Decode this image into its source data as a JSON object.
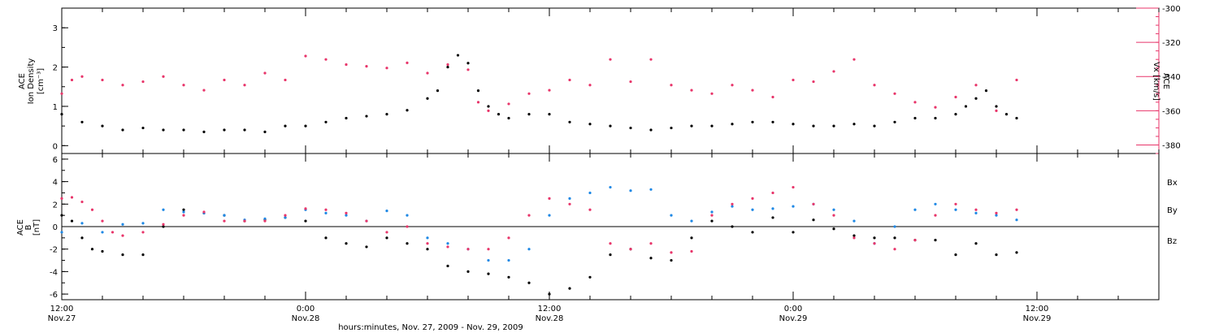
{
  "figure": {
    "xlabel": "hours:minutes, Nov. 27, 2009 - Nov. 29, 2009",
    "x_ticks": [
      {
        "time": "12:00",
        "date": "Nov.27",
        "hours": 0
      },
      {
        "time": "0:00",
        "date": "Nov.28",
        "hours": 12
      },
      {
        "time": "12:00",
        "date": "Nov.28",
        "hours": 24
      },
      {
        "time": "0:00",
        "date": "Nov.29",
        "hours": 36
      },
      {
        "time": "12:00",
        "date": "Nov.29",
        "hours": 48
      }
    ],
    "x_range_hours": [
      0,
      54
    ],
    "minor_tick_hours": 2
  },
  "top_panel": {
    "left_axis": {
      "line1": "ACE",
      "line2": "Ion Density",
      "unit": "[cm⁻³]",
      "range": [
        -0.2,
        3.5
      ],
      "ticks": [
        "0",
        "1",
        "2",
        "3"
      ]
    },
    "right_axis": {
      "line1": "ACE",
      "line2": "Vx [km/s]",
      "range": [
        -385,
        -300
      ],
      "ticks": [
        "-300",
        "-320",
        "-340",
        "-360",
        "-380"
      ],
      "color": "#e8356a"
    }
  },
  "bottom_panel": {
    "left_axis": {
      "line1": "ACE",
      "line2": "B",
      "unit": "[nT]",
      "range": [
        -6.5,
        6.5
      ],
      "ticks": [
        "6",
        "4",
        "2",
        "0",
        "-2",
        "-4",
        "-6"
      ]
    },
    "legend": [
      {
        "label": "Bx",
        "color": "#000000"
      },
      {
        "label": "By",
        "color": "#1e88e5"
      },
      {
        "label": "Bz",
        "color": "#e8356a"
      }
    ]
  },
  "chart_data": [
    {
      "type": "scatter",
      "panel": "top",
      "xlabel": "hours:minutes, Nov. 27, 2009 - Nov. 29, 2009",
      "x_unit": "hours since 12:00 Nov. 27, 2009",
      "series": [
        {
          "name": "Ion Density",
          "axis": "left",
          "color": "#000000",
          "x": [
            0,
            1,
            2,
            3,
            4,
            5,
            6,
            7,
            8,
            9,
            10,
            11,
            12,
            13,
            14,
            15,
            16,
            17,
            18,
            18.5,
            19,
            19.5,
            20,
            20.5,
            21,
            21.5,
            22,
            23,
            24,
            25,
            26,
            27,
            28,
            29,
            30,
            31,
            32,
            33,
            34,
            35,
            36,
            37,
            38,
            39,
            40,
            41,
            42,
            43,
            44,
            44.5,
            45,
            45.5,
            46,
            46.5,
            47
          ],
          "y": [
            0.8,
            0.6,
            0.5,
            0.4,
            0.45,
            0.4,
            0.4,
            0.35,
            0.4,
            0.4,
            0.35,
            0.5,
            0.5,
            0.6,
            0.7,
            0.75,
            0.8,
            0.9,
            1.2,
            1.4,
            2.0,
            2.3,
            2.1,
            1.4,
            1.0,
            0.8,
            0.7,
            0.8,
            0.8,
            0.6,
            0.55,
            0.5,
            0.45,
            0.4,
            0.45,
            0.5,
            0.5,
            0.55,
            0.6,
            0.6,
            0.55,
            0.5,
            0.5,
            0.55,
            0.5,
            0.6,
            0.7,
            0.7,
            0.8,
            1.0,
            1.2,
            1.4,
            1.0,
            0.8,
            0.7
          ]
        },
        {
          "name": "Vx",
          "axis": "right",
          "color": "#e8356a",
          "x": [
            0,
            0.5,
            1,
            2,
            3,
            4,
            5,
            6,
            7,
            8,
            9,
            10,
            11,
            12,
            13,
            14,
            15,
            16,
            17,
            18,
            19,
            20,
            20.5,
            21,
            22,
            23,
            24,
            25,
            26,
            27,
            28,
            29,
            30,
            31,
            32,
            33,
            34,
            35,
            36,
            37,
            38,
            39,
            40,
            41,
            42,
            43,
            44,
            45,
            46,
            47
          ],
          "y": [
            -350,
            -342,
            -340,
            -342,
            -345,
            -343,
            -340,
            -345,
            -348,
            -342,
            -345,
            -338,
            -342,
            -328,
            -330,
            -333,
            -334,
            -335,
            -332,
            -338,
            -333,
            -336,
            -355,
            -360,
            -356,
            -350,
            -348,
            -342,
            -345,
            -330,
            -343,
            -330,
            -345,
            -348,
            -350,
            -345,
            -348,
            -352,
            -342,
            -343,
            -337,
            -330,
            -345,
            -350,
            -355,
            -358,
            -352,
            -345,
            -360,
            -342
          ]
        }
      ]
    },
    {
      "type": "scatter",
      "panel": "bottom",
      "xlabel": "hours:minutes, Nov. 27, 2009 - Nov. 29, 2009",
      "x_unit": "hours since 12:00 Nov. 27, 2009",
      "series": [
        {
          "name": "Bx",
          "color": "#000000",
          "x": [
            0,
            0.5,
            1,
            1.5,
            2,
            3,
            4,
            5,
            6,
            7,
            8,
            9,
            10,
            11,
            12,
            13,
            14,
            15,
            16,
            17,
            18,
            19,
            20,
            21,
            22,
            23,
            24,
            25,
            26,
            27,
            28,
            29,
            30,
            31,
            32,
            33,
            34,
            35,
            36,
            37,
            38,
            39,
            40,
            41,
            42,
            43,
            44,
            45,
            46,
            47
          ],
          "y": [
            1,
            0.5,
            -1,
            -2,
            -2.2,
            -2.5,
            -2.5,
            0,
            1.5,
            1.2,
            1,
            0.5,
            0.6,
            0.8,
            0.5,
            -1,
            -1.5,
            -1.8,
            -1,
            -1.5,
            -2,
            -3.5,
            -4,
            -4.2,
            -4.5,
            -5,
            -6,
            -5.5,
            -4.5,
            -2.5,
            -2,
            -2.8,
            -3,
            -1,
            0.5,
            0,
            -0.5,
            0.8,
            -0.5,
            0.6,
            -0.2,
            -0.8,
            -1,
            -1,
            -1.2,
            -1.2,
            -2.5,
            -1.5,
            -2.5,
            -2.3
          ]
        },
        {
          "name": "By",
          "color": "#1e88e5",
          "x": [
            0,
            1,
            2,
            3,
            4,
            5,
            6,
            7,
            8,
            9,
            10,
            11,
            12,
            13,
            14,
            15,
            16,
            17,
            18,
            19,
            20,
            21,
            22,
            23,
            24,
            25,
            26,
            27,
            28,
            29,
            30,
            31,
            32,
            33,
            34,
            35,
            36,
            37,
            38,
            39,
            40,
            41,
            42,
            43,
            44,
            45,
            46,
            47
          ],
          "y": [
            -0.5,
            0.3,
            -0.5,
            0.2,
            0.3,
            1.5,
            1.3,
            1.2,
            1,
            0.6,
            0.7,
            0.8,
            1.5,
            1.2,
            1,
            0.5,
            1.4,
            1,
            -1,
            -1.5,
            -2,
            -3,
            -3,
            -2,
            1,
            2.5,
            3,
            3.5,
            3.2,
            3.3,
            1,
            0.5,
            1.3,
            1.8,
            1.5,
            1.6,
            1.8,
            2,
            1.5,
            0.5,
            -1.5,
            0,
            1.5,
            2,
            1.5,
            1.2,
            1,
            0.6
          ]
        },
        {
          "name": "Bz",
          "color": "#e8356a",
          "x": [
            0,
            0.5,
            1,
            1.5,
            2,
            2.5,
            3,
            4,
            5,
            6,
            7,
            8,
            9,
            10,
            11,
            12,
            13,
            14,
            15,
            16,
            17,
            18,
            19,
            20,
            21,
            22,
            23,
            24,
            25,
            26,
            27,
            28,
            29,
            30,
            31,
            32,
            33,
            34,
            35,
            36,
            37,
            38,
            39,
            40,
            41,
            42,
            43,
            44,
            45,
            46,
            47
          ],
          "y": [
            2.5,
            2.6,
            2.2,
            1.5,
            0.5,
            -0.5,
            -0.8,
            -0.5,
            0.2,
            1,
            1.3,
            0.5,
            0.5,
            0.5,
            1,
            1.6,
            1.5,
            1.2,
            0.5,
            -0.5,
            0,
            -1.5,
            -1.8,
            -2,
            -2,
            -1,
            1,
            2.5,
            2,
            1.5,
            -1.5,
            -2,
            -1.5,
            -2.3,
            -2.2,
            1,
            2,
            2.5,
            3,
            3.5,
            2,
            1,
            -1,
            -1.5,
            -2,
            -1.2,
            1,
            2,
            1.5,
            1.2,
            1.5
          ]
        }
      ]
    }
  ]
}
